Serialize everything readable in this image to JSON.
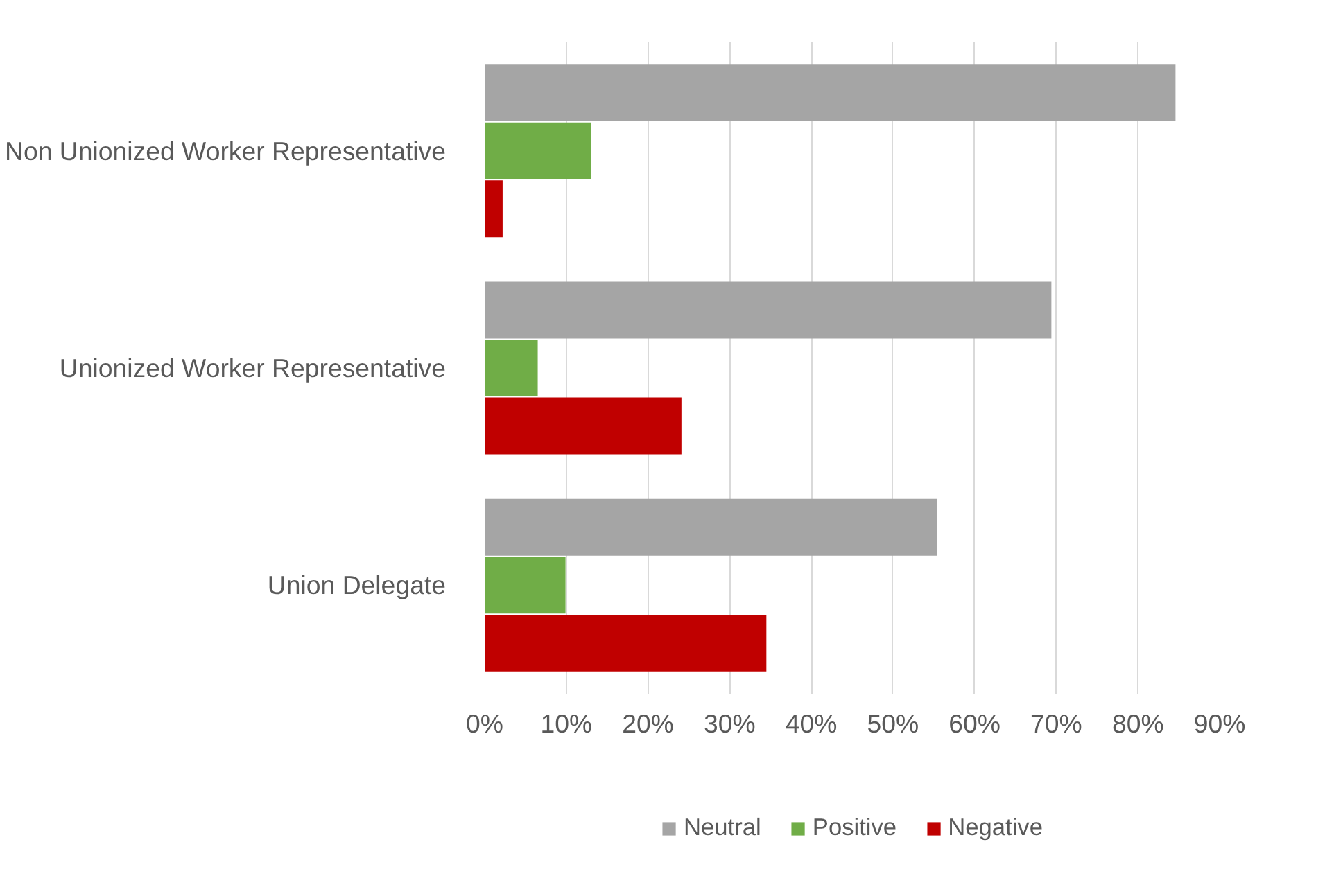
{
  "chart_data": {
    "type": "bar",
    "orientation": "horizontal",
    "categories": [
      "Non Unionized Worker Representative",
      "Unionized Worker Representative",
      "Union Delegate"
    ],
    "series": [
      {
        "name": "Neutral",
        "color": "#a5a5a5",
        "values": [
          84.6,
          69.4,
          55.4
        ]
      },
      {
        "name": "Positive",
        "color": "#70ad47",
        "values": [
          13.0,
          6.5,
          9.9
        ]
      },
      {
        "name": "Negative",
        "color": "#c00000",
        "values": [
          2.2,
          24.1,
          34.5
        ]
      }
    ],
    "xlim": [
      0,
      90
    ],
    "xticks": [
      {
        "value": 0,
        "label": "0%"
      },
      {
        "value": 10,
        "label": "10%"
      },
      {
        "value": 20,
        "label": "20%"
      },
      {
        "value": 30,
        "label": "30%"
      },
      {
        "value": 40,
        "label": "40%"
      },
      {
        "value": 50,
        "label": "50%"
      },
      {
        "value": 60,
        "label": "60%"
      },
      {
        "value": 70,
        "label": "70%"
      },
      {
        "value": 80,
        "label": "80%"
      },
      {
        "value": 90,
        "label": "90%"
      }
    ],
    "grid": "x",
    "legend": "bottom"
  }
}
